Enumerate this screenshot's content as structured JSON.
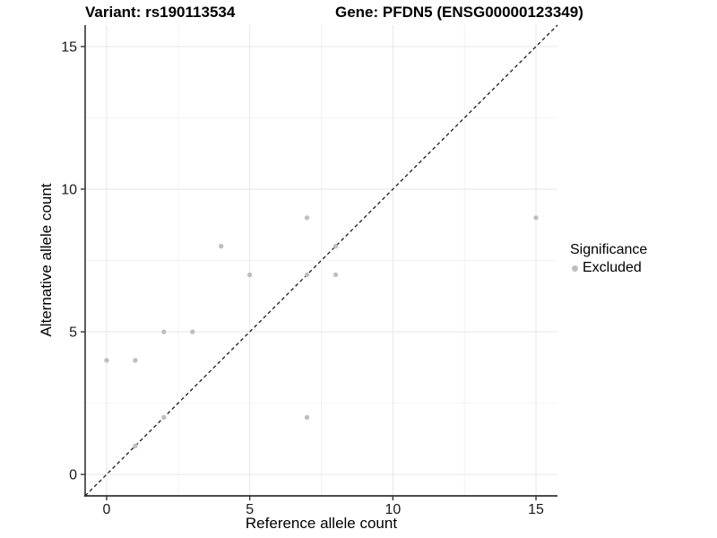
{
  "chart_data": {
    "type": "scatter",
    "title_left": "Variant: rs190113534",
    "title_right": "Gene: PFDN5 (ENSG00000123349)",
    "xlabel": "Reference allele count",
    "ylabel": "Alternative allele count",
    "xlim": [
      -0.75,
      15.75
    ],
    "ylim": [
      -0.75,
      15.75
    ],
    "x_ticks": [
      0,
      5,
      10,
      15
    ],
    "y_ticks": [
      0,
      5,
      10,
      15
    ],
    "minor_gridlines": [
      2.5,
      7.5,
      12.5
    ],
    "grid": true,
    "identity_line": {
      "style": "dashed",
      "from": [
        -0.75,
        -0.75
      ],
      "to": [
        15.75,
        15.75
      ],
      "color": "#1a1a1a"
    },
    "series": [
      {
        "name": "Excluded",
        "color": "#bfbfbf",
        "points": [
          [
            0,
            4
          ],
          [
            1,
            1
          ],
          [
            1,
            4
          ],
          [
            2,
            2
          ],
          [
            2,
            5
          ],
          [
            3,
            5
          ],
          [
            4,
            8
          ],
          [
            5,
            7
          ],
          [
            7,
            2
          ],
          [
            7,
            7
          ],
          [
            7,
            9
          ],
          [
            8,
            7
          ],
          [
            8,
            8
          ],
          [
            15,
            9
          ]
        ]
      }
    ],
    "legend": {
      "title": "Significance",
      "position": "right",
      "entries": [
        {
          "label": "Excluded",
          "color": "#bfbfbf"
        }
      ]
    }
  },
  "colors": {
    "background": "#ffffff",
    "grid_major": "#e6e6e6",
    "grid_minor": "#f2f2f2",
    "axis_line": "#333333",
    "tick_label": "#1a1a1a",
    "point": "#bfbfbf",
    "identity_line": "#1a1a1a"
  }
}
